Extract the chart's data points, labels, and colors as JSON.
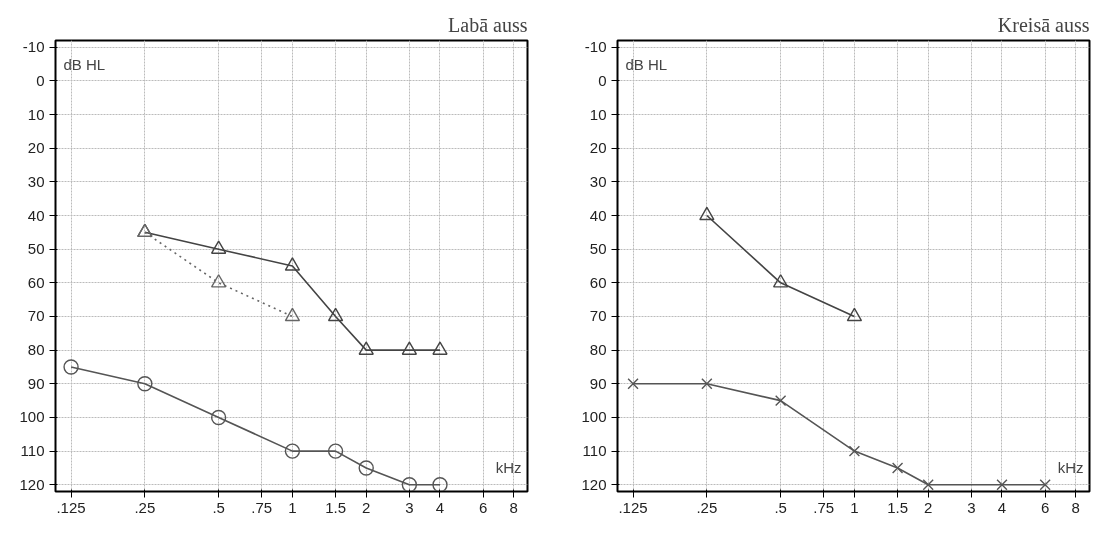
{
  "chart_data": [
    {
      "type": "line",
      "title": "Labā auss",
      "xlabel": "kHz",
      "ylabel": "dB HL",
      "log": "x",
      "grid": true,
      "xlim": [
        0.108,
        9.1
      ],
      "ylim": [
        122,
        -12
      ],
      "xticks": [
        {
          "value": 0.125,
          "label": ".125"
        },
        {
          "value": 0.25,
          "label": ".25"
        },
        {
          "value": 0.5,
          "label": ".5"
        },
        {
          "value": 0.75,
          "label": ".75"
        },
        1,
        1.5,
        2,
        3,
        4,
        6,
        8
      ],
      "yticks": [
        -10,
        0,
        10,
        20,
        30,
        40,
        50,
        60,
        70,
        80,
        90,
        100,
        110,
        120
      ],
      "series": [
        {
          "color": "#555555",
          "marker": "circle",
          "line_style": "solid",
          "x": [
            0.125,
            0.25,
            0.5,
            1,
            1.5,
            2,
            3,
            4
          ],
          "values": [
            85,
            90,
            100,
            110,
            110,
            115,
            120,
            120
          ]
        },
        {
          "color": "#444444",
          "marker": "triangle",
          "line_style": "solid",
          "x": [
            0.25,
            0.5,
            1,
            1.5,
            2,
            3,
            4
          ],
          "values": [
            45,
            50,
            55,
            70,
            80,
            80,
            80
          ]
        },
        {
          "color": "#666666",
          "marker": "triangle",
          "line_style": "dotted",
          "x": [
            0.25,
            0.5,
            1
          ],
          "values": [
            45,
            60,
            70
          ]
        }
      ]
    },
    {
      "type": "line",
      "title": "Kreisā auss",
      "xlabel": "kHz",
      "ylabel": "dB HL",
      "log": "x",
      "grid": true,
      "xlim": [
        0.108,
        9.1
      ],
      "ylim": [
        122,
        -12
      ],
      "xticks": [
        {
          "value": 0.125,
          "label": ".125"
        },
        {
          "value": 0.25,
          "label": ".25"
        },
        {
          "value": 0.5,
          "label": ".5"
        },
        {
          "value": 0.75,
          "label": ".75"
        },
        1,
        1.5,
        2,
        3,
        4,
        6,
        8
      ],
      "yticks": [
        -10,
        0,
        10,
        20,
        30,
        40,
        50,
        60,
        70,
        80,
        90,
        100,
        110,
        120
      ],
      "series": [
        {
          "color": "#555555",
          "marker": "cross",
          "line_style": "solid",
          "x": [
            0.125,
            0.25,
            0.5,
            1,
            1.5,
            2,
            4,
            6
          ],
          "values": [
            90,
            90,
            95,
            110,
            115,
            120,
            120,
            120
          ]
        },
        {
          "color": "#444444",
          "marker": "triangle",
          "line_style": "solid",
          "x": [
            0.25,
            0.5,
            1
          ],
          "values": [
            40,
            60,
            70
          ]
        }
      ]
    }
  ]
}
